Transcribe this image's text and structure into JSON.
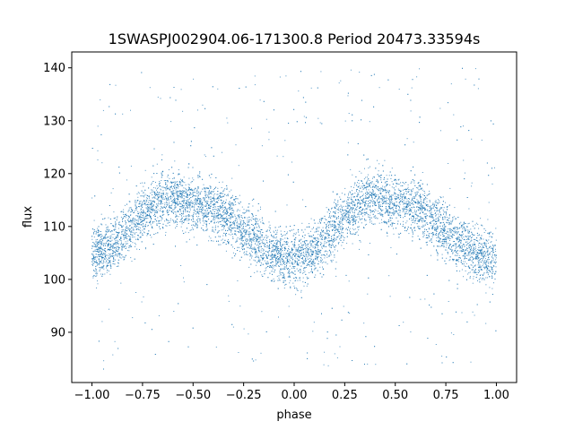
{
  "chart_data": {
    "type": "scatter",
    "title": "1SWASPJ002904.06-171300.8 Period 20473.33594s",
    "xlabel": "phase",
    "ylabel": "flux",
    "xlim": [
      -1.1,
      1.1
    ],
    "ylim": [
      80.5,
      143
    ],
    "xticks": [
      -1.0,
      -0.75,
      -0.5,
      -0.25,
      0.0,
      0.25,
      0.5,
      0.75,
      1.0
    ],
    "xtick_labels": [
      "−1.00",
      "−0.75",
      "−0.50",
      "−0.25",
      "0.00",
      "0.25",
      "0.50",
      "0.75",
      "1.00"
    ],
    "yticks": [
      90,
      100,
      110,
      120,
      130,
      140
    ],
    "ytick_labels": [
      "90",
      "100",
      "110",
      "120",
      "130",
      "140"
    ],
    "grid": false,
    "marker_color": "#1f77b4",
    "trend": {
      "description_points": [
        {
          "phase": -1.0,
          "flux": 105.0
        },
        {
          "phase": -0.6,
          "flux": 115.5
        },
        {
          "phase": -0.5,
          "flux": 114.5
        },
        {
          "phase": 0.0,
          "flux": 104.0
        },
        {
          "phase": 0.4,
          "flux": 115.5
        },
        {
          "phase": 0.5,
          "flux": 114.5
        },
        {
          "phase": 1.0,
          "flux": 104.0
        }
      ],
      "band_halfwidth": 3.5
    },
    "outlier_range": [
      83,
      140
    ]
  }
}
